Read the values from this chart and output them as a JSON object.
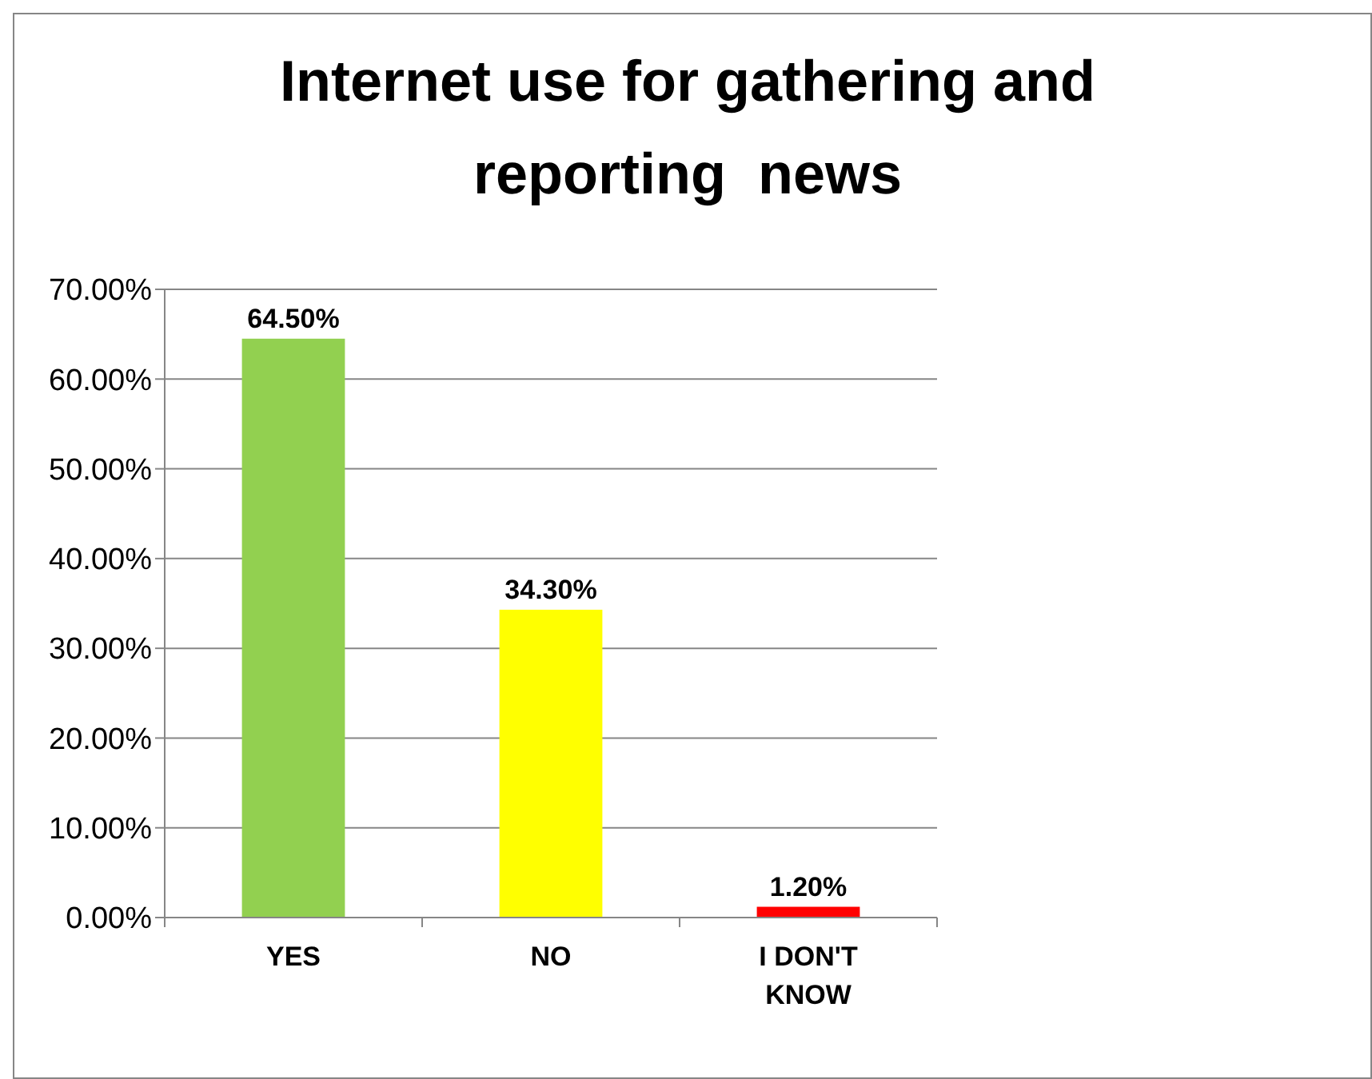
{
  "chart_data": {
    "type": "bar",
    "title": "Internet use for gathering and reporting  news",
    "categories": [
      "YES",
      "NO",
      "I DON'T KNOW"
    ],
    "values": [
      64.5,
      34.3,
      1.2
    ],
    "colors": [
      "#92d050",
      "#ffff00",
      "#ff0000"
    ],
    "value_labels": [
      "64.50%",
      "34.30%",
      "1.20%"
    ],
    "ylim": [
      0,
      70
    ],
    "yticks": [
      {
        "value": 0,
        "label": "0.00%"
      },
      {
        "value": 10,
        "label": "10.00%"
      },
      {
        "value": 20,
        "label": "20.00%"
      },
      {
        "value": 30,
        "label": "30.00%"
      },
      {
        "value": 40,
        "label": "40.00%"
      },
      {
        "value": 50,
        "label": "50.00%"
      },
      {
        "value": 60,
        "label": "60.00%"
      },
      {
        "value": 70,
        "label": "70.00%"
      }
    ],
    "grid": "y"
  }
}
